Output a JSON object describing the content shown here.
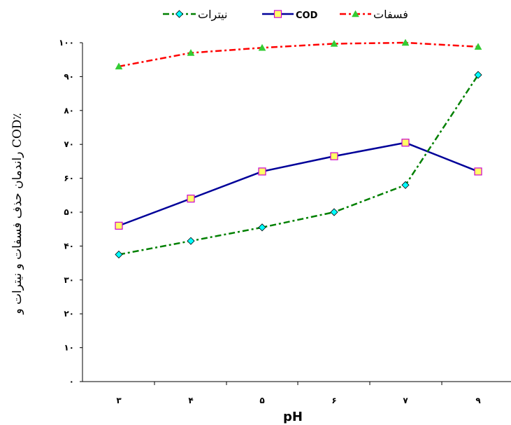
{
  "chart_data": {
    "type": "line",
    "xlabel": "pH",
    "ylabel": "٪COD راندمان حذف فسفات و نیترات و",
    "x": [
      "۳",
      "۴",
      "۵",
      "۶",
      "۷",
      "۹"
    ],
    "ylim": [
      0,
      100
    ],
    "yticks": [
      "۰",
      "۱۰",
      "۲۰",
      "۳۰",
      "۴۰",
      "۵۰",
      "۶۰",
      "۷۰",
      "۸۰",
      "۹۰",
      "۱۰۰"
    ],
    "legend_position": "top",
    "grid": false,
    "series": [
      {
        "name": "فسفات",
        "values": [
          93,
          97,
          98.5,
          99.7,
          100,
          98.8
        ],
        "color": "#ff0000",
        "marker": "triangle",
        "marker_color": "#33cc33",
        "line_style": "dash-dot"
      },
      {
        "name": "COD",
        "values": [
          46,
          54,
          62,
          66.5,
          70.5,
          62
        ],
        "color": "#000099",
        "marker": "square",
        "marker_color": "#ffff66",
        "marker_edge": "#cc00cc",
        "line_style": "solid"
      },
      {
        "name": "نیترات",
        "values": [
          37.5,
          41.5,
          45.5,
          50,
          58,
          90.5
        ],
        "color": "#008000",
        "marker": "diamond",
        "marker_color": "#00ffff",
        "line_style": "dash-dot"
      }
    ]
  }
}
